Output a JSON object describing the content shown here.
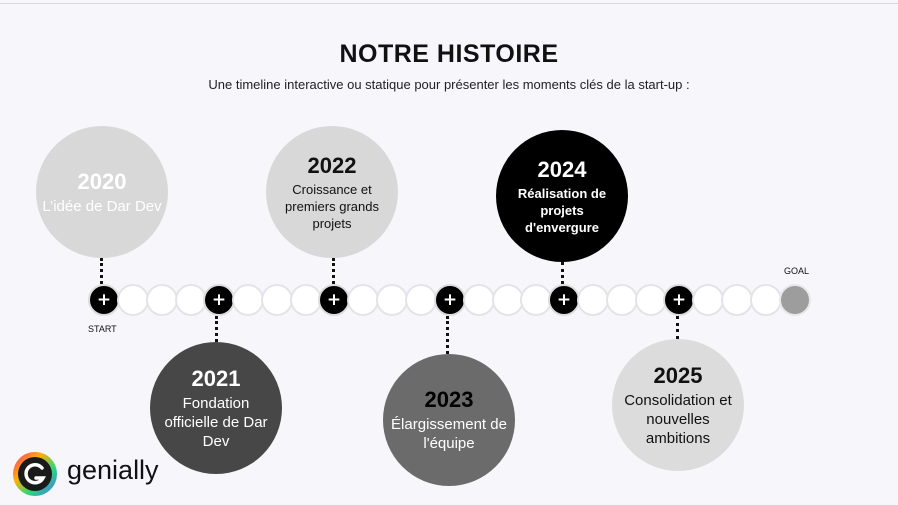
{
  "title": "NOTRE HISTOIRE",
  "subtitle": "Une timeline interactive ou statique pour présenter les moments clés de la start-up :",
  "events": [
    {
      "year": "2020",
      "description": "L’idée de Dar Dev"
    },
    {
      "year": "2021",
      "description": "Fondation officielle de Dar Dev"
    },
    {
      "year": "2022",
      "description": "Croissance et premiers grands projets"
    },
    {
      "year": "2023",
      "description": "Élargissement de l'équipe"
    },
    {
      "year": "2024",
      "description": "Réalisation de projets d'envergure"
    },
    {
      "year": "2025",
      "description": "Consolidation et nouvelles ambitions"
    }
  ],
  "timeline": {
    "start_label": "START",
    "goal_label": "GOAL",
    "plus_symbol": "+"
  },
  "logo": {
    "text": "genially"
  },
  "colors": {
    "background": "#f7f6fb",
    "accent": "#000000",
    "muted": "#d8d8d8"
  }
}
